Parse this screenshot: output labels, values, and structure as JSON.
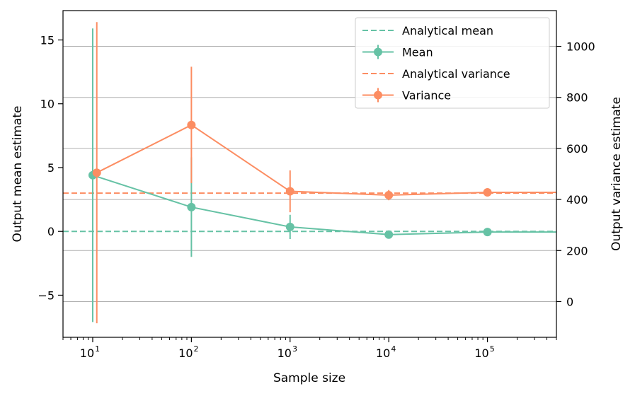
{
  "colors": {
    "mean": "#66c2a5",
    "variance": "#fc8d62",
    "grid": "#b0b0b0",
    "axis": "#000000"
  },
  "chart_data": {
    "type": "line",
    "xlabel": "Sample size",
    "ylabel_left": "Output mean estimate",
    "ylabel_right": "Output variance estimate",
    "x_scale": "log",
    "xlim": [
      5,
      500000
    ],
    "ylim_left": [
      -8.3,
      17.3
    ],
    "ylim_right": [
      -140,
      1140
    ],
    "grid": "horizontal lines at right-axis ticks",
    "legend_position": "upper right",
    "x_ticks": [
      {
        "value": 10,
        "base": "10",
        "exp": "1"
      },
      {
        "value": 100,
        "base": "10",
        "exp": "2"
      },
      {
        "value": 1000,
        "base": "10",
        "exp": "3"
      },
      {
        "value": 10000,
        "base": "10",
        "exp": "4"
      },
      {
        "value": 100000,
        "base": "10",
        "exp": "5"
      }
    ],
    "y_ticks_left": [
      {
        "value": 15,
        "label": "15"
      },
      {
        "value": 10,
        "label": "10"
      },
      {
        "value": 5,
        "label": "5"
      },
      {
        "value": 0,
        "label": "0"
      },
      {
        "value": -5,
        "label": "−5"
      }
    ],
    "y_ticks_right": [
      {
        "value": 1000,
        "label": "1000"
      },
      {
        "value": 800,
        "label": "800"
      },
      {
        "value": 600,
        "label": "600"
      },
      {
        "value": 400,
        "label": "400"
      },
      {
        "value": 200,
        "label": "200"
      },
      {
        "value": 0,
        "label": "0"
      }
    ],
    "legend": [
      {
        "label": "Analytical mean",
        "style": "dashed",
        "series": "mean"
      },
      {
        "label": "Mean",
        "style": "errorbar",
        "series": "mean"
      },
      {
        "label": "Analytical variance",
        "style": "dashed",
        "series": "variance"
      },
      {
        "label": "Variance",
        "style": "errorbar",
        "series": "variance"
      }
    ],
    "analytical_mean": 0,
    "analytical_variance": 425,
    "series": [
      {
        "name": "Mean",
        "axis": "left",
        "x": [
          10,
          100,
          1000,
          10000,
          100000
        ],
        "y": [
          4.4,
          1.9,
          0.35,
          -0.25,
          -0.05
        ],
        "yerr": [
          11.5,
          3.9,
          0.95,
          0.25,
          0.05
        ]
      },
      {
        "name": "Variance",
        "axis": "right",
        "x": [
          11,
          100,
          1000,
          10000,
          100000
        ],
        "y": [
          505,
          692,
          432,
          417,
          428
        ],
        "yerr": [
          590,
          228,
          82,
          20,
          5
        ]
      }
    ]
  }
}
